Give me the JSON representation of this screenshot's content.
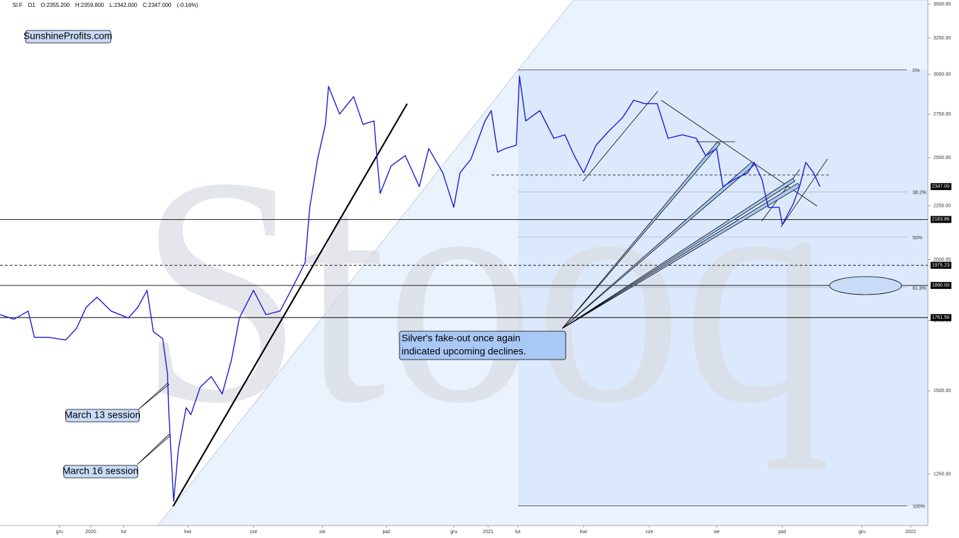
{
  "chart_data": {
    "type": "line",
    "header": [
      "SI.F",
      "D1",
      "O:2355.200",
      "H:2359.800",
      "L:2342.000",
      "C:2347.000",
      "(-0.16%)"
    ],
    "watermark": "Stooq",
    "color": "#1a1ad6",
    "log_scale": true,
    "xlim": [
      0,
      593
    ],
    "ylim": [
      1117,
      3532
    ],
    "x": [
      0,
      9,
      18,
      22,
      31,
      42,
      49,
      55,
      62,
      71,
      82,
      88,
      94,
      98,
      104,
      107,
      108,
      111,
      114,
      119,
      122,
      128,
      135,
      142,
      148,
      153,
      162,
      170,
      179,
      186,
      195,
      198,
      203,
      208,
      210,
      217,
      226,
      232,
      239,
      241,
      243,
      250,
      259,
      268,
      274,
      283,
      290,
      294,
      301,
      310,
      314,
      318,
      323,
      330,
      332,
      336,
      345,
      354,
      361,
      367,
      373,
      381,
      389,
      398,
      405,
      412,
      420,
      427,
      436,
      445,
      451,
      458,
      462,
      469,
      478,
      482,
      487,
      491,
      498,
      500,
      507,
      511,
      515,
      520,
      524
    ],
    "values": [
      1773,
      1755,
      1787,
      1687,
      1687,
      1677,
      1721,
      1801,
      1842,
      1787,
      1760,
      1801,
      1870,
      1708,
      1682,
      1559,
      1424,
      1178,
      1320,
      1446,
      1424,
      1513,
      1548,
      1490,
      1607,
      1760,
      1870,
      1773,
      1787,
      1870,
      1987,
      2243,
      2493,
      2690,
      2923,
      2751,
      2858,
      2690,
      2710,
      2493,
      2312,
      2456,
      2512,
      2347,
      2551,
      2419,
      2243,
      2419,
      2493,
      2710,
      2772,
      2531,
      2551,
      2570,
      2990,
      2710,
      2772,
      2609,
      2629,
      2512,
      2419,
      2570,
      2649,
      2731,
      2836,
      2815,
      2815,
      2609,
      2629,
      2609,
      2512,
      2551,
      2347,
      2383,
      2419,
      2475,
      2383,
      2243,
      2243,
      2159,
      2260,
      2347,
      2475,
      2419,
      2347
    ],
    "yticks": [
      {
        "value": 3500,
        "label": "3500.00"
      },
      {
        "value": 3250,
        "label": "3250.00"
      },
      {
        "value": 3000,
        "label": "3000.00"
      },
      {
        "value": 2750,
        "label": "2750.00"
      },
      {
        "value": 2500,
        "label": "2500.00"
      },
      {
        "value": 2250,
        "label": "2250.00"
      },
      {
        "value": 2000,
        "label": "2000.00"
      },
      {
        "value": 1750,
        "label": "1750.00"
      },
      {
        "value": 1500,
        "label": "1500.00"
      },
      {
        "value": 1250,
        "label": "1250.00"
      }
    ],
    "xticks": [
      {
        "value": 38,
        "label": "gru"
      },
      {
        "value": 58,
        "label": "2020"
      },
      {
        "value": 79,
        "label": "lut"
      },
      {
        "value": 120,
        "label": "kwi"
      },
      {
        "value": 162,
        "label": "cze"
      },
      {
        "value": 206,
        "label": "sie"
      },
      {
        "value": 247,
        "label": "paź"
      },
      {
        "value": 290,
        "label": "gru"
      },
      {
        "value": 312,
        "label": "2021"
      },
      {
        "value": 331,
        "label": "lut"
      },
      {
        "value": 373,
        "label": "kwi"
      },
      {
        "value": 415,
        "label": "cze"
      },
      {
        "value": 458,
        "label": "sie"
      },
      {
        "value": 500,
        "label": "paź"
      },
      {
        "value": 551,
        "label": "gru"
      },
      {
        "value": 582,
        "label": "2022"
      }
    ],
    "last_price": {
      "value": 2347,
      "label": "2347.00"
    },
    "levels": [
      {
        "value": 2183.86,
        "label": "2183.86",
        "style": "solid"
      },
      {
        "value": 1975.23,
        "label": "1975.23",
        "style": "dashed"
      },
      {
        "value": 1890,
        "label": "1890.00",
        "style": "solid"
      },
      {
        "value": 1761.56,
        "label": "1761.56",
        "style": "solid"
      }
    ],
    "fib_levels": [
      {
        "value": 3031,
        "label": "0%"
      },
      {
        "value": 2319,
        "label": "38.2%"
      },
      {
        "value": 2101,
        "label": "50%"
      },
      {
        "value": 1881,
        "label": "61.8%"
      },
      {
        "value": 1166,
        "label": "100%"
      }
    ],
    "annotations": {
      "logo": "SunshineProfits.com",
      "march13": "March 13 session",
      "march16": "March 16 session",
      "callout": [
        "Silver's fake-out once again",
        "indicated upcoming declines."
      ]
    }
  }
}
